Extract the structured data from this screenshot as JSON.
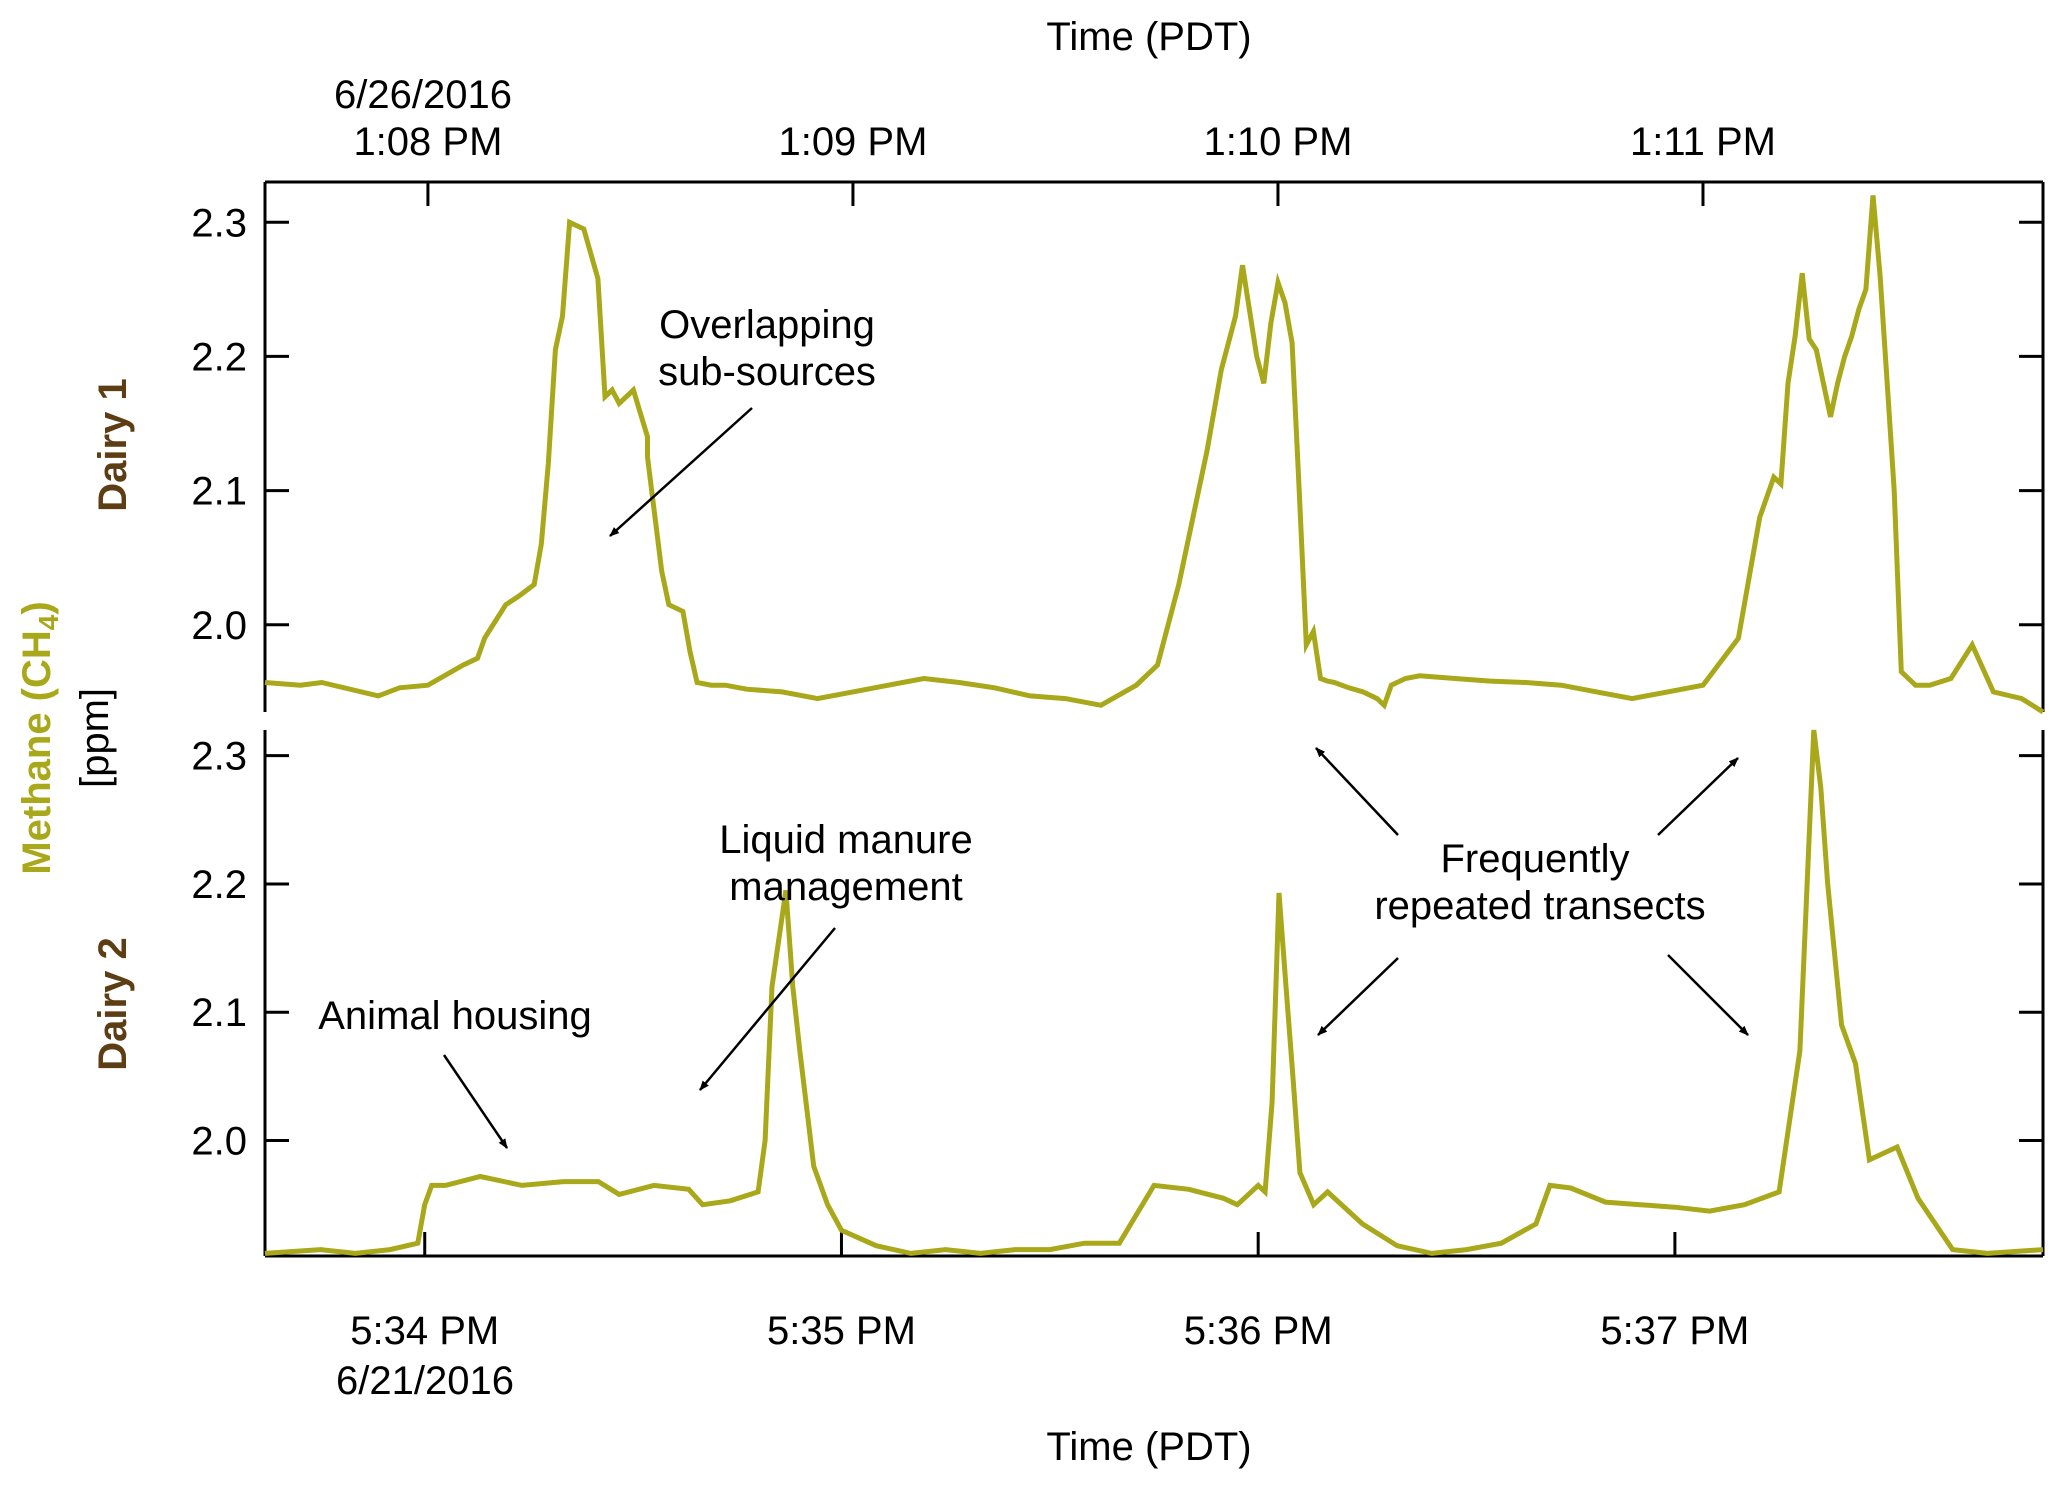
{
  "colors": {
    "series": "#a8a81a",
    "dairy_label": "#5c3d14",
    "axis": "#000000",
    "background": "#ffffff"
  },
  "axes": {
    "top_title": "Time (PDT)",
    "bottom_title": "Time (PDT)",
    "top_first_tick_date": "6/26/2016",
    "bottom_first_tick_date": "6/21/2016",
    "ylabel_main": "Methane (CH",
    "ylabel_sub": "4",
    "ylabel_close": ")",
    "ylabel_unit": "[ppm]"
  },
  "chart_data": [
    {
      "type": "line",
      "panel": "Dairy 1",
      "ylim": [
        1.935,
        2.33
      ],
      "yticks": [
        2.0,
        2.1,
        2.2,
        2.3
      ],
      "ytick_labels": [
        "2.0",
        "2.1",
        "2.2",
        "2.3"
      ],
      "xlim": [
        "1:07:37 PM",
        "1:11:48 PM"
      ],
      "xticks": [
        {
          "t": "1:08:00 PM",
          "label": "1:08 PM"
        },
        {
          "t": "1:09:00 PM",
          "label": "1:09 PM"
        },
        {
          "t": "1:10:00 PM",
          "label": "1:10 PM"
        },
        {
          "t": "1:11:00 PM",
          "label": "1:11 PM"
        }
      ],
      "grid": false,
      "series": [
        {
          "x": [
            "1:07:37 PM",
            "1:07:42 PM",
            "1:07:45 PM",
            "1:07:53 PM",
            "1:07:56 PM",
            "1:08:00 PM",
            "1:08:05 PM",
            "1:08:07 PM",
            "1:08:08 PM",
            "1:08:11 PM",
            "1:08:13 PM",
            "1:08:15 PM",
            "1:08:16 PM",
            "1:08:17 PM",
            "1:08:18 PM",
            "1:08:19 PM",
            "1:08:20 PM",
            "1:08:22 PM",
            "1:08:24 PM",
            "1:08:25 PM",
            "1:08:26 PM",
            "1:08:27 PM",
            "1:08:29 PM",
            "1:08:31 PM",
            "1:08:31 PM",
            "1:08:33 PM",
            "1:08:34 PM",
            "1:08:36 PM",
            "1:08:37 PM",
            "1:08:38 PM",
            "1:08:40 PM",
            "1:08:42 PM",
            "1:08:45 PM",
            "1:08:50 PM",
            "1:08:55 PM",
            "1:09:00 PM",
            "1:09:05 PM",
            "1:09:10 PM",
            "1:09:15 PM",
            "1:09:20 PM",
            "1:09:25 PM",
            "1:09:30 PM",
            "1:09:35 PM",
            "1:09:40 PM",
            "1:09:43 PM",
            "1:09:46 PM",
            "1:09:50 PM",
            "1:09:52 PM",
            "1:09:54 PM",
            "1:09:55 PM",
            "1:09:57 PM",
            "1:09:58 PM",
            "1:09:59 PM",
            "1:10:00 PM",
            "1:10:01 PM",
            "1:10:02 PM",
            "1:10:03 PM",
            "1:10:04 PM",
            "1:10:05 PM",
            "1:10:06 PM",
            "1:10:07 PM",
            "1:10:08 PM",
            "1:10:09 PM",
            "1:10:10 PM",
            "1:10:12 PM",
            "1:10:14 PM",
            "1:10:15 PM",
            "1:10:16 PM",
            "1:10:18 PM",
            "1:10:20 PM",
            "1:10:25 PM",
            "1:10:30 PM",
            "1:10:35 PM",
            "1:10:40 PM",
            "1:10:45 PM",
            "1:10:50 PM",
            "1:10:55 PM",
            "1:11:00 PM",
            "1:11:05 PM",
            "1:11:08 PM",
            "1:11:10 PM",
            "1:11:11 PM",
            "1:11:12 PM",
            "1:11:13 PM",
            "1:11:14 PM",
            "1:11:15 PM",
            "1:11:16 PM",
            "1:11:17 PM",
            "1:11:18 PM",
            "1:11:19 PM",
            "1:11:20 PM",
            "1:11:21 PM",
            "1:11:22 PM",
            "1:11:23 PM",
            "1:11:24 PM",
            "1:11:25 PM",
            "1:11:26 PM",
            "1:11:27 PM",
            "1:11:28 PM",
            "1:11:29 PM",
            "1:11:30 PM",
            "1:11:32 PM",
            "1:11:35 PM",
            "1:11:38 PM",
            "1:11:41 PM",
            "1:11:45 PM",
            "1:11:48 PM"
          ],
          "y": [
            1.957,
            1.955,
            1.957,
            1.947,
            1.953,
            1.955,
            1.97,
            1.975,
            1.99,
            2.015,
            2.022,
            2.03,
            2.06,
            2.12,
            2.205,
            2.23,
            2.3,
            2.295,
            2.258,
            2.17,
            2.175,
            2.165,
            2.175,
            2.14,
            2.125,
            2.04,
            2.015,
            2.01,
            1.98,
            1.957,
            1.955,
            1.955,
            1.952,
            1.95,
            1.945,
            1.95,
            1.955,
            1.96,
            1.957,
            1.953,
            1.947,
            1.945,
            1.94,
            1.955,
            1.97,
            2.03,
            2.13,
            2.19,
            2.23,
            2.268,
            2.2,
            2.18,
            2.225,
            2.255,
            2.24,
            2.21,
            2.1,
            1.985,
            1.995,
            1.96,
            1.958,
            1.957,
            1.955,
            1.953,
            1.95,
            1.945,
            1.94,
            1.955,
            1.96,
            1.962,
            1.96,
            1.958,
            1.957,
            1.955,
            1.95,
            1.945,
            1.95,
            1.955,
            1.99,
            2.08,
            2.11,
            2.105,
            2.18,
            2.215,
            2.262,
            2.213,
            2.205,
            2.18,
            2.155,
            2.18,
            2.2,
            2.215,
            2.235,
            2.25,
            2.32,
            2.26,
            2.18,
            2.1,
            1.965,
            1.96,
            1.955,
            1.955,
            1.96,
            1.985,
            1.95,
            1.945,
            1.935
          ]
        }
      ]
    },
    {
      "type": "line",
      "panel": "Dairy 2",
      "ylim": [
        1.91,
        2.32
      ],
      "yticks": [
        2.0,
        2.1,
        2.2,
        2.3
      ],
      "ytick_labels": [
        "2.0",
        "2.1",
        "2.2",
        "2.3"
      ],
      "xlim": [
        "5:33:37 PM",
        "5:37:53 PM"
      ],
      "xticks": [
        {
          "t": "5:34:00 PM",
          "label": "5:34 PM"
        },
        {
          "t": "5:35:00 PM",
          "label": "5:35 PM"
        },
        {
          "t": "5:36:00 PM",
          "label": "5:36 PM"
        },
        {
          "t": "5:37:00 PM",
          "label": "5:37 PM"
        }
      ],
      "grid": false,
      "series": [
        {
          "x": [
            "5:33:37 PM",
            "5:33:45 PM",
            "5:33:50 PM",
            "5:33:55 PM",
            "5:33:59 PM",
            "5:34:00 PM",
            "5:34:01 PM",
            "5:34:03 PM",
            "5:34:08 PM",
            "5:34:14 PM",
            "5:34:20 PM",
            "5:34:25 PM",
            "5:34:28 PM",
            "5:34:33 PM",
            "5:34:38 PM",
            "5:34:40 PM",
            "5:34:44 PM",
            "5:34:48 PM",
            "5:34:49 PM",
            "5:34:50 PM",
            "5:34:52 PM",
            "5:34:53 PM",
            "5:34:54 PM",
            "5:34:56 PM",
            "5:34:58 PM",
            "5:35:00 PM",
            "5:35:05 PM",
            "5:35:10 PM",
            "5:35:15 PM",
            "5:35:20 PM",
            "5:35:25 PM",
            "5:35:28 PM",
            "5:35:30 PM",
            "5:35:35 PM",
            "5:35:40 PM",
            "5:35:45 PM",
            "5:35:50 PM",
            "5:35:55 PM",
            "5:35:57 PM",
            "5:35:58 PM",
            "5:35:59 PM",
            "5:36:00 PM",
            "5:36:01 PM",
            "5:36:02 PM",
            "5:36:03 PM",
            "5:36:04 PM",
            "5:36:05 PM",
            "5:36:06 PM",
            "5:36:08 PM",
            "5:36:10 PM",
            "5:36:15 PM",
            "5:36:20 PM",
            "5:36:25 PM",
            "5:36:30 PM",
            "5:36:35 PM",
            "5:36:40 PM",
            "5:36:42 PM",
            "5:36:45 PM",
            "5:36:50 PM",
            "5:36:55 PM",
            "5:37:00 PM",
            "5:37:05 PM",
            "5:37:10 PM",
            "5:37:15 PM",
            "5:37:18 PM",
            "5:37:20 PM",
            "5:37:21 PM",
            "5:37:22 PM",
            "5:37:24 PM",
            "5:37:26 PM",
            "5:37:28 PM",
            "5:37:30 PM",
            "5:37:32 PM",
            "5:37:35 PM",
            "5:37:40 PM",
            "5:37:45 PM",
            "5:37:53 PM"
          ],
          "y": [
            1.912,
            1.915,
            1.912,
            1.915,
            1.92,
            1.95,
            1.965,
            1.965,
            1.972,
            1.965,
            1.968,
            1.968,
            1.958,
            1.965,
            1.962,
            1.95,
            1.953,
            1.96,
            2.0,
            2.12,
            2.195,
            2.12,
            2.07,
            1.98,
            1.95,
            1.93,
            1.918,
            1.912,
            1.915,
            1.912,
            1.915,
            1.915,
            1.915,
            1.92,
            1.92,
            1.965,
            1.962,
            1.955,
            1.95,
            1.955,
            1.96,
            1.965,
            1.96,
            2.03,
            2.193,
            2.12,
            2.05,
            1.975,
            1.95,
            1.96,
            1.935,
            1.918,
            1.912,
            1.915,
            1.92,
            1.935,
            1.965,
            1.963,
            1.952,
            1.95,
            1.948,
            1.945,
            1.95,
            1.96,
            2.07,
            2.32,
            2.275,
            2.2,
            2.09,
            2.06,
            1.985,
            1.99,
            1.995,
            1.955,
            1.915,
            1.912,
            1.915
          ]
        }
      ]
    }
  ],
  "panels": {
    "top": {
      "label": "Dairy 1"
    },
    "bottom": {
      "label": "Dairy 2"
    }
  },
  "annotations": {
    "overlap_line1": "Overlapping",
    "overlap_line2": "sub-sources",
    "liquid_line1": "Liquid manure",
    "liquid_line2": "management",
    "animal": "Animal housing",
    "repeat_line1": "Frequently",
    "repeat_line2": "repeated transects"
  }
}
